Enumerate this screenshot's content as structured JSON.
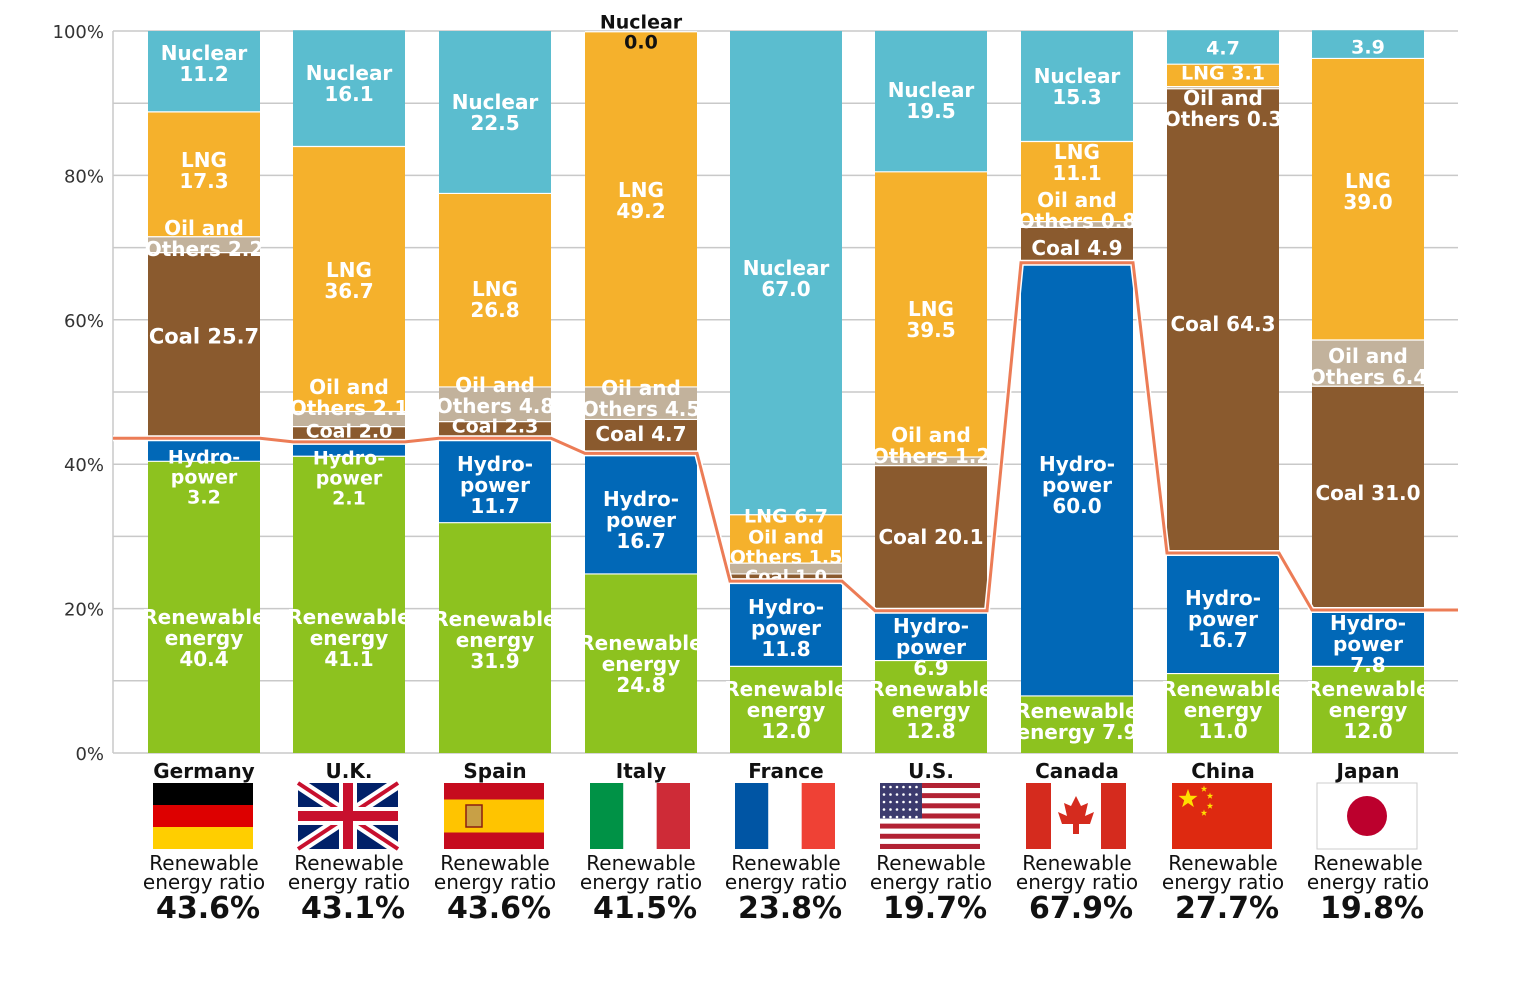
{
  "chart_data": {
    "type": "bar",
    "stacked": true,
    "y_tick_labels": [
      "0%",
      "20%",
      "40%",
      "60%",
      "80%",
      "100%"
    ],
    "ylim": [
      0,
      100
    ],
    "grid": true,
    "categories": [
      "Germany",
      "U.K.",
      "Spain",
      "Italy",
      "France",
      "U.S.",
      "Canada",
      "China",
      "Japan"
    ],
    "colors": {
      "renewable": "#8dc21f",
      "hydro": "#0168b7",
      "coal": "#8a5a2e",
      "oil": "#c2b29c",
      "lng": "#f5b12c",
      "nuclear": "#5bbdcf",
      "ratio_line": "#ec7c56"
    },
    "bars": [
      {
        "country": "Germany",
        "flag": "germany-flag-icon",
        "ratio_line": 43.6,
        "ratio_value": "43.6%",
        "segments": [
          {
            "type": "renewable",
            "value": 40.4,
            "label": [
              "Renewable",
              "energy",
              "40.4"
            ]
          },
          {
            "type": "hydro",
            "value": 3.2,
            "label": [
              "Hydro-",
              "power",
              "3.2"
            ]
          },
          {
            "type": "coal",
            "value": 25.7,
            "label": [
              "Coal 25.7"
            ]
          },
          {
            "type": "oil",
            "value": 2.2,
            "label": [
              "Oil and",
              "Others 2.2"
            ]
          },
          {
            "type": "lng",
            "value": 17.3,
            "label": [
              "LNG",
              "17.3"
            ]
          },
          {
            "type": "nuclear",
            "value": 11.2,
            "label": [
              "Nuclear",
              "11.2"
            ]
          }
        ]
      },
      {
        "country": "U.K.",
        "flag": "uk-flag-icon",
        "ratio_line": 43.1,
        "ratio_value": "43.1%",
        "segments": [
          {
            "type": "renewable",
            "value": 41.1,
            "label": [
              "Renewable",
              "energy",
              "41.1"
            ]
          },
          {
            "type": "hydro",
            "value": 2.1,
            "label": [
              "Hydro-",
              "power",
              "2.1"
            ]
          },
          {
            "type": "coal",
            "value": 2.0,
            "label": [
              "Coal 2.0"
            ]
          },
          {
            "type": "oil",
            "value": 2.1,
            "label": [
              "Oil and",
              "Others 2.1"
            ]
          },
          {
            "type": "lng",
            "value": 36.7,
            "label": [
              "LNG",
              "36.7"
            ]
          },
          {
            "type": "nuclear",
            "value": 16.1,
            "label": [
              "Nuclear",
              "16.1"
            ]
          }
        ]
      },
      {
        "country": "Spain",
        "flag": "spain-flag-icon",
        "ratio_line": 43.6,
        "ratio_value": "43.6%",
        "segments": [
          {
            "type": "renewable",
            "value": 31.9,
            "label": [
              "Renewable",
              "energy",
              "31.9"
            ]
          },
          {
            "type": "hydro",
            "value": 11.7,
            "label": [
              "Hydro-",
              "power",
              "11.7"
            ]
          },
          {
            "type": "coal",
            "value": 2.3,
            "label": [
              "Coal 2.3"
            ]
          },
          {
            "type": "oil",
            "value": 4.8,
            "label": [
              "Oil and",
              "Others 4.8"
            ]
          },
          {
            "type": "lng",
            "value": 26.8,
            "label": [
              "LNG",
              "26.8"
            ]
          },
          {
            "type": "nuclear",
            "value": 22.5,
            "label": [
              "Nuclear",
              "22.5"
            ]
          }
        ]
      },
      {
        "country": "Italy",
        "flag": "italy-flag-icon",
        "ratio_line": 41.5,
        "ratio_value": "41.5%",
        "segments": [
          {
            "type": "renewable",
            "value": 24.8,
            "label": [
              "Renewable",
              "energy",
              "24.8"
            ]
          },
          {
            "type": "hydro",
            "value": 16.7,
            "label": [
              "Hydro-",
              "power",
              "16.7"
            ]
          },
          {
            "type": "coal",
            "value": 4.7,
            "label": [
              "Coal 4.7"
            ]
          },
          {
            "type": "oil",
            "value": 4.5,
            "label": [
              "Oil and",
              "Others 4.5"
            ]
          },
          {
            "type": "lng",
            "value": 49.2,
            "label": [
              "LNG",
              "49.2"
            ]
          },
          {
            "type": "nuclear",
            "value": 0.0,
            "label": [
              "Nuclear",
              "0.0"
            ]
          }
        ]
      },
      {
        "country": "France",
        "flag": "france-flag-icon",
        "ratio_line": 23.8,
        "ratio_value": "23.8%",
        "segments": [
          {
            "type": "renewable",
            "value": 12.0,
            "label": [
              "Renewable",
              "energy",
              "12.0"
            ]
          },
          {
            "type": "hydro",
            "value": 11.8,
            "label": [
              "Hydro-",
              "power",
              "11.8"
            ]
          },
          {
            "type": "coal",
            "value": 1.0,
            "label": [
              "Coal 1.0"
            ]
          },
          {
            "type": "oil",
            "value": 1.5,
            "label": [
              "Oil and",
              "Others 1.5"
            ]
          },
          {
            "type": "lng",
            "value": 6.7,
            "label": [
              "LNG 6.7"
            ]
          },
          {
            "type": "nuclear",
            "value": 67.0,
            "label": [
              "Nuclear",
              "67.0"
            ]
          }
        ]
      },
      {
        "country": "U.S.",
        "flag": "us-flag-icon",
        "ratio_line": 19.7,
        "ratio_value": "19.7%",
        "segments": [
          {
            "type": "renewable",
            "value": 12.8,
            "label": [
              "Renewable",
              "energy",
              "12.8"
            ]
          },
          {
            "type": "hydro",
            "value": 6.9,
            "label": [
              "Hydro-",
              "power",
              "6.9"
            ]
          },
          {
            "type": "coal",
            "value": 20.1,
            "label": [
              "Coal 20.1"
            ]
          },
          {
            "type": "oil",
            "value": 1.2,
            "label": [
              "Oil and",
              "Others 1.2"
            ]
          },
          {
            "type": "lng",
            "value": 39.5,
            "label": [
              "LNG",
              "39.5"
            ]
          },
          {
            "type": "nuclear",
            "value": 19.5,
            "label": [
              "Nuclear",
              "19.5"
            ]
          }
        ]
      },
      {
        "country": "Canada",
        "flag": "canada-flag-icon",
        "ratio_line": 67.9,
        "ratio_value": "67.9%",
        "segments": [
          {
            "type": "renewable",
            "value": 7.9,
            "label": [
              "Renewable",
              "energy 7.9"
            ]
          },
          {
            "type": "hydro",
            "value": 60.0,
            "label": [
              "Hydro-",
              "power",
              "60.0"
            ]
          },
          {
            "type": "coal",
            "value": 4.9,
            "label": [
              "Coal 4.9"
            ]
          },
          {
            "type": "oil",
            "value": 0.8,
            "label": [
              "Oil and",
              "Others 0.8"
            ]
          },
          {
            "type": "lng",
            "value": 11.1,
            "label": [
              "LNG",
              "11.1"
            ]
          },
          {
            "type": "nuclear",
            "value": 15.3,
            "label": [
              "Nuclear",
              "15.3"
            ]
          }
        ]
      },
      {
        "country": "China",
        "flag": "china-flag-icon",
        "ratio_line": 27.7,
        "ratio_value": "27.7%",
        "segments": [
          {
            "type": "renewable",
            "value": 11.0,
            "label": [
              "Renewable",
              "energy",
              "11.0"
            ]
          },
          {
            "type": "hydro",
            "value": 16.7,
            "label": [
              "Hydro-",
              "power",
              "16.7"
            ]
          },
          {
            "type": "coal",
            "value": 64.3,
            "label": [
              "Coal 64.3"
            ]
          },
          {
            "type": "oil",
            "value": 0.3,
            "label": [
              "Oil and",
              "Others 0.3"
            ]
          },
          {
            "type": "lng",
            "value": 3.1,
            "label": [
              "LNG 3.1"
            ]
          },
          {
            "type": "nuclear",
            "value": 4.7,
            "label": [
              "4.7"
            ]
          }
        ]
      },
      {
        "country": "Japan",
        "flag": "japan-flag-icon",
        "ratio_line": 19.8,
        "ratio_value": "19.8%",
        "segments": [
          {
            "type": "renewable",
            "value": 12.0,
            "label": [
              "Renewable",
              "energy",
              "12.0"
            ]
          },
          {
            "type": "hydro",
            "value": 7.8,
            "label": [
              "Hydro-",
              "power",
              "7.8"
            ]
          },
          {
            "type": "coal",
            "value": 31.0,
            "label": [
              "Coal 31.0"
            ]
          },
          {
            "type": "oil",
            "value": 6.4,
            "label": [
              "Oil and",
              "Others 6.4"
            ]
          },
          {
            "type": "lng",
            "value": 39.0,
            "label": [
              "LNG",
              "39.0"
            ]
          },
          {
            "type": "nuclear",
            "value": 3.9,
            "label": [
              "3.9"
            ]
          }
        ]
      }
    ],
    "ratio_caption": [
      "Renewable",
      "energy ratio"
    ]
  }
}
